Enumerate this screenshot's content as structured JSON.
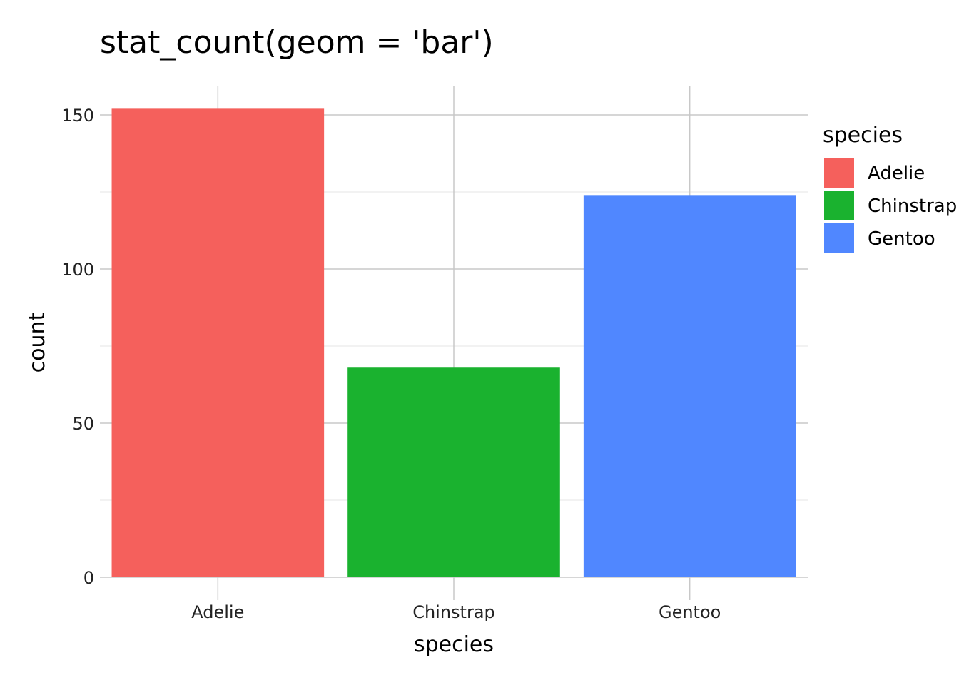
{
  "chart_data": {
    "type": "bar",
    "title": "stat_count(geom = 'bar')",
    "xlabel": "species",
    "ylabel": "count",
    "categories": [
      "Adelie",
      "Chinstrap",
      "Gentoo"
    ],
    "values": [
      152,
      68,
      124
    ],
    "colors": [
      "#F5605C",
      "#1AB22F",
      "#5087FF"
    ],
    "ylim": [
      0,
      160
    ],
    "yticks": [
      0,
      50,
      100,
      150
    ],
    "grid": true,
    "legend": {
      "title": "species",
      "placement": "right",
      "entries": [
        "Adelie",
        "Chinstrap",
        "Gentoo"
      ]
    }
  }
}
